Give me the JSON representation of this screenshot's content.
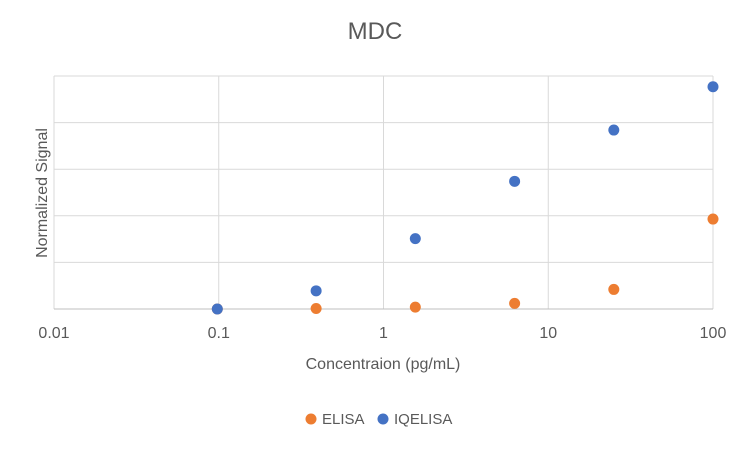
{
  "chart_data": {
    "type": "scatter",
    "title": "MDC",
    "xlabel": "Concentraion (pg/mL)",
    "ylabel": "Normalized Signal",
    "x_scale": "log",
    "xlim": [
      0.01,
      100
    ],
    "x_ticks": [
      "0.01",
      "0.1",
      "1",
      "10",
      "100"
    ],
    "ylim": [
      0,
      5
    ],
    "y_ticks_labeled": false,
    "grid": true,
    "legend_position": "bottom",
    "series": [
      {
        "name": "ELISA",
        "color": "#ED7D31",
        "points": [
          {
            "x": 0.098,
            "y": 0.0
          },
          {
            "x": 0.39,
            "y": 0.01
          },
          {
            "x": 1.56,
            "y": 0.04
          },
          {
            "x": 6.25,
            "y": 0.12
          },
          {
            "x": 25,
            "y": 0.42
          },
          {
            "x": 100,
            "y": 1.93
          }
        ]
      },
      {
        "name": "IQELISA",
        "color": "#4472C4",
        "points": [
          {
            "x": 0.098,
            "y": 0.0
          },
          {
            "x": 0.39,
            "y": 0.39
          },
          {
            "x": 1.56,
            "y": 1.51
          },
          {
            "x": 6.25,
            "y": 2.74
          },
          {
            "x": 25,
            "y": 3.84
          },
          {
            "x": 100,
            "y": 4.77
          }
        ]
      }
    ]
  }
}
